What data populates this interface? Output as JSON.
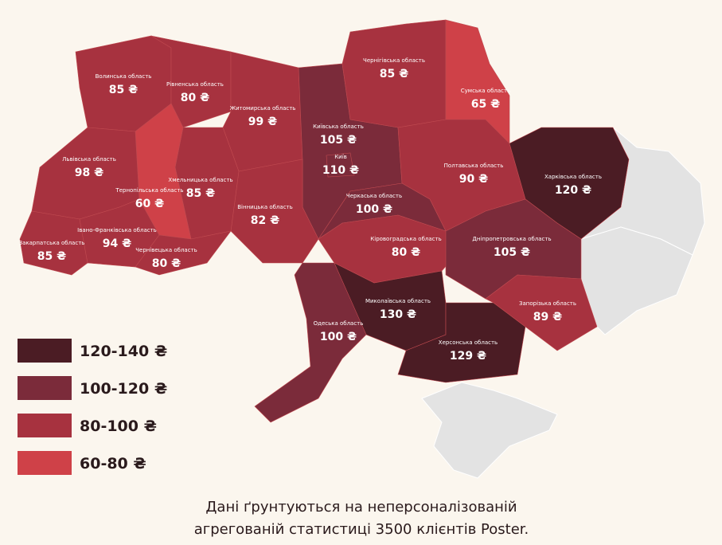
{
  "regions": [
    {
      "name": "Волинська область",
      "price": "85 ₴",
      "color": "#a7323f"
    },
    {
      "name": "Рівненська область",
      "price": "80 ₴",
      "color": "#a7323f"
    },
    {
      "name": "Житомирська область",
      "price": "99 ₴",
      "color": "#a7323f"
    },
    {
      "name": "Київська область",
      "price": "105 ₴",
      "color": "#7b2b3a"
    },
    {
      "name": "Київ",
      "price": "110 ₴",
      "color": "#7b2b3a"
    },
    {
      "name": "Чернігівська область",
      "price": "85 ₴",
      "color": "#a7323f"
    },
    {
      "name": "Сумська область",
      "price": "65 ₴",
      "color": "#cf4148"
    },
    {
      "name": "Полтавська область",
      "price": "90 ₴",
      "color": "#a7323f"
    },
    {
      "name": "Харківська область",
      "price": "120 ₴",
      "color": "#4b1c24"
    },
    {
      "name": "Черкаська область",
      "price": "100 ₴",
      "color": "#7b2b3a"
    },
    {
      "name": "Вінницька область",
      "price": "82 ₴",
      "color": "#a7323f"
    },
    {
      "name": "Хмельницька область",
      "price": "85 ₴",
      "color": "#a7323f"
    },
    {
      "name": "Тернопільська область",
      "price": "60 ₴",
      "color": "#cf4148"
    },
    {
      "name": "Львівська область",
      "price": "98 ₴",
      "color": "#a7323f"
    },
    {
      "name": "Закарпатська область",
      "price": "85 ₴",
      "color": "#a7323f"
    },
    {
      "name": "Івано-Франківська область",
      "price": "94 ₴",
      "color": "#a7323f"
    },
    {
      "name": "Чернівецька область",
      "price": "80 ₴",
      "color": "#a7323f"
    },
    {
      "name": "Кіровоградська область",
      "price": "80 ₴",
      "color": "#a7323f"
    },
    {
      "name": "Дніпропетровська область",
      "price": "105 ₴",
      "color": "#7b2b3a"
    },
    {
      "name": "Одеська область",
      "price": "100 ₴",
      "color": "#7b2b3a"
    },
    {
      "name": "Миколаївська область",
      "price": "130 ₴",
      "color": "#4b1c24"
    },
    {
      "name": "Херсонська область",
      "price": "129 ₴",
      "color": "#4b1c24"
    },
    {
      "name": "Запорізька область",
      "price": "89 ₴",
      "color": "#a7323f"
    }
  ],
  "legend": [
    {
      "label": "120-140 ₴",
      "color": "#4b1c24"
    },
    {
      "label": "100-120 ₴",
      "color": "#7b2b3a"
    },
    {
      "label": "80-100 ₴",
      "color": "#a7323f"
    },
    {
      "label": "60-80 ₴",
      "color": "#cf4148"
    }
  ],
  "footer": [
    "Дані ґрунтуються на неперсоналізованій",
    "агрегованій статистиці 3500 клієнтів Poster."
  ]
}
